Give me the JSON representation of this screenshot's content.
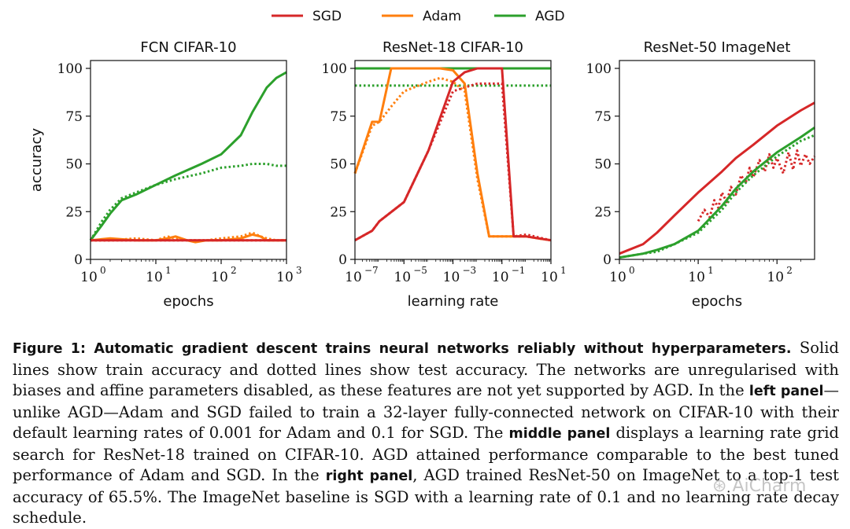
{
  "colors": {
    "sgd": "#d62728",
    "adam": "#ff7f0e",
    "agd": "#2ca02c"
  },
  "legend": [
    {
      "label": "SGD",
      "series": "sgd"
    },
    {
      "label": "Adam",
      "series": "adam"
    },
    {
      "label": "AGD",
      "series": "agd"
    }
  ],
  "chart_data": [
    {
      "type": "line",
      "title": "FCN CIFAR-10",
      "xlabel": "epochs",
      "ylabel": "accuracy",
      "xscale": "log",
      "xlim": [
        1,
        1000
      ],
      "ylim": [
        0,
        100
      ],
      "xticks": [
        {
          "base": "10",
          "exp": "0"
        },
        {
          "base": "10",
          "exp": "1"
        },
        {
          "base": "10",
          "exp": "2"
        },
        {
          "base": "10",
          "exp": "3"
        }
      ],
      "yticks": [
        "0",
        "25",
        "50",
        "75",
        "100"
      ],
      "series": [
        {
          "key": "agd",
          "style": "solid",
          "x": [
            1,
            1.5,
            2,
            3,
            5,
            10,
            20,
            50,
            100,
            200,
            300,
            500,
            700,
            1000
          ],
          "y": [
            10,
            18,
            24,
            31,
            34,
            39,
            44,
            50,
            55,
            65,
            77,
            90,
            95,
            98
          ]
        },
        {
          "key": "agd",
          "style": "dotted",
          "x": [
            1,
            1.5,
            2,
            3,
            5,
            10,
            20,
            50,
            100,
            200,
            300,
            500,
            700,
            1000
          ],
          "y": [
            10,
            20,
            26,
            32,
            35,
            39,
            42,
            45,
            48,
            49,
            50,
            50,
            49,
            49
          ]
        },
        {
          "key": "adam",
          "style": "solid",
          "x": [
            1,
            2,
            5,
            10,
            15,
            20,
            30,
            40,
            60,
            100,
            200,
            300,
            400,
            500,
            700,
            1000
          ],
          "y": [
            10,
            11,
            10,
            10,
            11,
            12,
            10,
            9,
            10,
            10,
            11,
            13,
            12,
            10,
            10,
            10
          ]
        },
        {
          "key": "adam",
          "style": "dotted",
          "x": [
            1,
            2,
            5,
            10,
            15,
            20,
            30,
            40,
            60,
            100,
            200,
            300,
            400,
            500,
            700,
            1000
          ],
          "y": [
            10,
            10,
            11,
            10,
            12,
            11,
            10,
            10,
            10,
            11,
            12,
            14,
            12,
            11,
            10,
            10
          ]
        },
        {
          "key": "sgd",
          "style": "solid",
          "x": [
            1,
            10,
            100,
            1000
          ],
          "y": [
            10,
            10,
            10,
            10
          ]
        },
        {
          "key": "sgd",
          "style": "dotted",
          "x": [
            1,
            10,
            100,
            1000
          ],
          "y": [
            10,
            10,
            10,
            10
          ]
        }
      ]
    },
    {
      "type": "line",
      "title": "ResNet-18 CIFAR-10",
      "xlabel": "learning rate",
      "ylabel": "",
      "xscale": "log",
      "xlim": [
        1e-07,
        10
      ],
      "ylim": [
        0,
        100
      ],
      "xticks": [
        {
          "base": "10",
          "exp": "−7"
        },
        {
          "base": "10",
          "exp": "−5"
        },
        {
          "base": "10",
          "exp": "−3"
        },
        {
          "base": "10",
          "exp": "−1"
        },
        {
          "base": "10",
          "exp": "1"
        }
      ],
      "yticks": [
        "0",
        "25",
        "50",
        "75",
        "100"
      ],
      "series": [
        {
          "key": "agd",
          "style": "solid",
          "x": [
            1e-07,
            10
          ],
          "y": [
            100,
            100
          ]
        },
        {
          "key": "agd",
          "style": "dotted",
          "x": [
            1e-07,
            10
          ],
          "y": [
            91,
            91
          ]
        },
        {
          "key": "adam",
          "style": "solid",
          "x": [
            1e-07,
            5e-07,
            1e-06,
            3e-06,
            1e-05,
            0.0001,
            0.0003,
            0.001,
            0.003,
            0.01,
            0.03,
            0.1,
            0.3,
            1,
            3,
            10
          ],
          "y": [
            45,
            72,
            72,
            100,
            100,
            100,
            100,
            99,
            92,
            45,
            12,
            12,
            12,
            12,
            11,
            10
          ]
        },
        {
          "key": "adam",
          "style": "dotted",
          "x": [
            1e-07,
            5e-07,
            1e-06,
            3e-06,
            1e-05,
            0.0001,
            0.0003,
            0.001,
            0.003,
            0.01,
            0.03,
            0.1,
            0.3,
            1,
            3,
            10
          ],
          "y": [
            45,
            70,
            72,
            80,
            88,
            93,
            95,
            93,
            88,
            42,
            12,
            12,
            12,
            12,
            11,
            10
          ]
        },
        {
          "key": "sgd",
          "style": "solid",
          "x": [
            1e-07,
            5e-07,
            1e-06,
            1e-05,
            0.0001,
            0.001,
            0.003,
            0.01,
            0.03,
            0.1,
            0.3,
            1,
            10
          ],
          "y": [
            10,
            15,
            20,
            30,
            57,
            93,
            98,
            100,
            100,
            100,
            12,
            12,
            10
          ]
        },
        {
          "key": "sgd",
          "style": "dotted",
          "x": [
            1e-07,
            5e-07,
            1e-06,
            1e-05,
            0.0001,
            0.001,
            0.003,
            0.01,
            0.03,
            0.1,
            0.3,
            1,
            10
          ],
          "y": [
            10,
            15,
            20,
            30,
            57,
            88,
            90,
            92,
            92,
            92,
            12,
            13,
            10
          ]
        }
      ]
    },
    {
      "type": "line",
      "title": "ResNet-50 ImageNet",
      "xlabel": "epochs",
      "ylabel": "",
      "xscale": "log",
      "xlim": [
        1,
        300
      ],
      "ylim": [
        0,
        100
      ],
      "xticks": [
        {
          "base": "10",
          "exp": "0"
        },
        {
          "base": "10",
          "exp": "1"
        },
        {
          "base": "10",
          "exp": "2"
        }
      ],
      "yticks": [
        "0",
        "25",
        "50",
        "75",
        "100"
      ],
      "series": [
        {
          "key": "sgd",
          "style": "solid",
          "x": [
            1,
            2,
            3,
            5,
            10,
            20,
            30,
            50,
            100,
            200,
            300
          ],
          "y": [
            3,
            8,
            14,
            23,
            35,
            46,
            53,
            60,
            70,
            78,
            82
          ]
        },
        {
          "key": "sgd",
          "style": "dotted",
          "x": [
            10,
            12,
            14,
            16,
            18,
            20,
            23,
            26,
            30,
            35,
            40,
            45,
            50,
            60,
            70,
            80,
            90,
            100,
            120,
            140,
            160,
            180,
            200,
            230,
            260,
            300
          ],
          "y": [
            20,
            26,
            22,
            31,
            27,
            35,
            30,
            38,
            34,
            44,
            40,
            48,
            43,
            52,
            46,
            55,
            48,
            53,
            45,
            56,
            47,
            57,
            49,
            55,
            50,
            54
          ]
        },
        {
          "key": "agd",
          "style": "solid",
          "x": [
            1,
            2,
            3,
            5,
            10,
            20,
            30,
            50,
            100,
            200,
            300
          ],
          "y": [
            1,
            3,
            5,
            8,
            15,
            28,
            37,
            46,
            56,
            64,
            69
          ]
        },
        {
          "key": "agd",
          "style": "dotted",
          "x": [
            1,
            2,
            3,
            5,
            10,
            20,
            30,
            50,
            100,
            200,
            300
          ],
          "y": [
            1,
            3,
            4,
            8,
            14,
            26,
            35,
            44,
            54,
            62,
            65
          ]
        }
      ]
    }
  ],
  "caption": {
    "figure_label": "Figure 1:",
    "title": "Automatic gradient descent trains neural networks reliably without hyperparameters.",
    "text_1": " Solid lines show train accuracy and dotted lines show test accuracy. The networks are unregularised with biases and affine parameters disabled, as these features are not yet supported by AGD. In the ",
    "bold_1": "left panel",
    "text_2": "—unlike AGD—Adam and SGD failed to train a 32-layer fully-connected network on CIFAR-10 with their default learning rates of 0.001 for Adam and 0.1 for SGD. The ",
    "bold_2": "middle panel",
    "text_3": " displays a learning rate grid search for ResNet-18 trained on CIFAR-10. AGD attained performance comparable to the best tuned performance of Adam and SGD. In the ",
    "bold_3": "right panel",
    "text_4": ", AGD trained ResNet-50 on ImageNet to a top-1 test accuracy of 65.5%. The ImageNet baseline is SGD with a learning rate of 0.1 and no learning rate decay schedule."
  },
  "watermark": "AiCharm"
}
